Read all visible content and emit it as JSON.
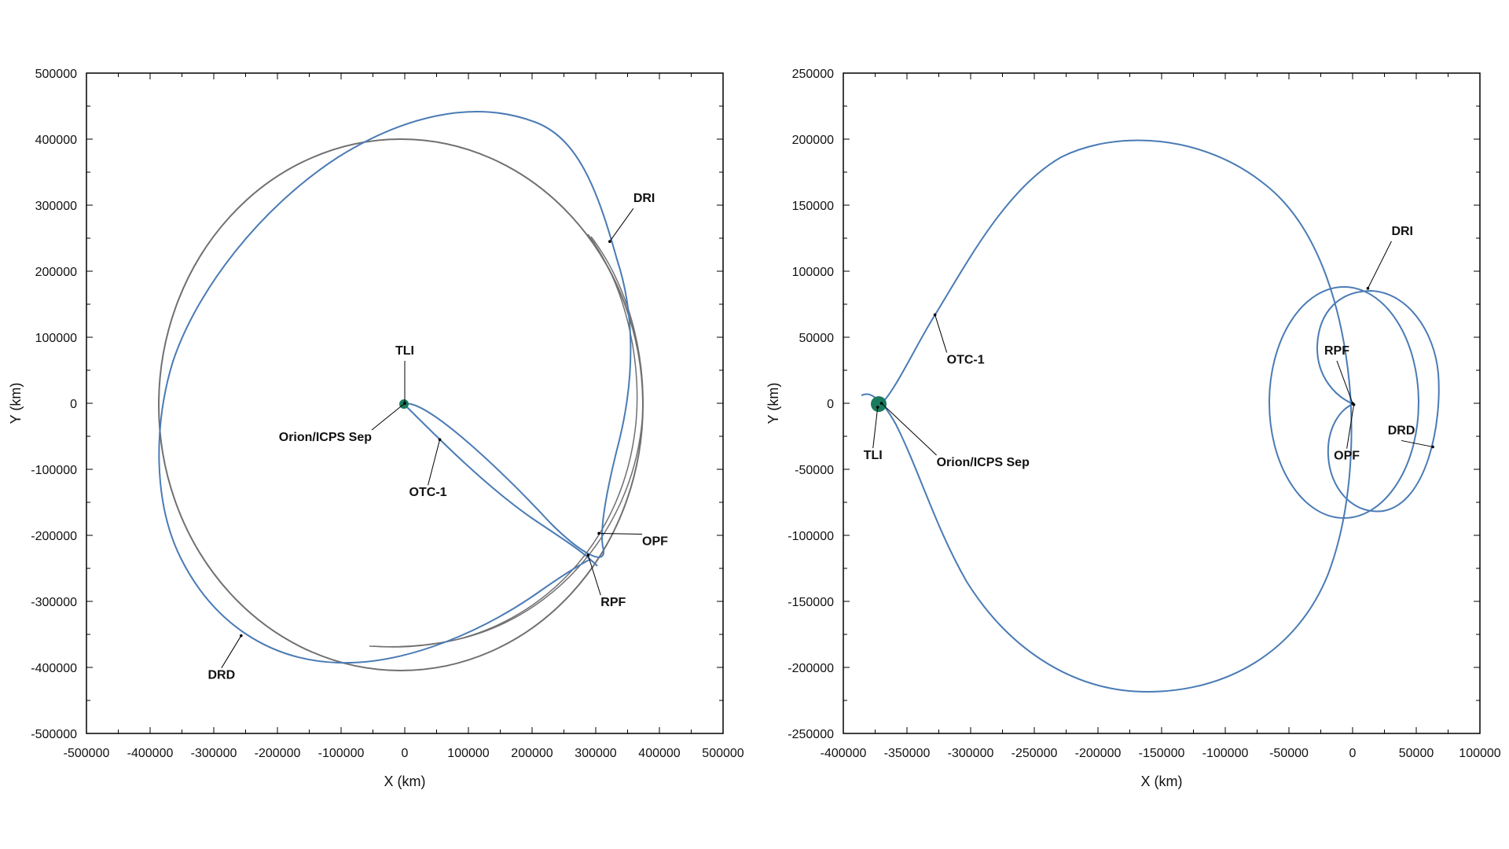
{
  "colors": {
    "trajectory": "#4a7bb5",
    "moon_orbit": "#707070",
    "earth": "#1a7a5e",
    "axis": "#000000"
  },
  "chart_data": [
    {
      "type": "line",
      "xlabel": "X (km)",
      "ylabel": "Y (km)",
      "xlim": [
        -500000,
        500000
      ],
      "ylim": [
        -500000,
        500000
      ],
      "x_ticks": [
        "-500000",
        "-400000",
        "-300000",
        "-200000",
        "-100000",
        "0",
        "100000",
        "200000",
        "300000",
        "400000",
        "500000"
      ],
      "y_ticks": [
        "500000",
        "400000",
        "300000",
        "200000",
        "100000",
        "0",
        "-100000",
        "-200000",
        "-300000",
        "-400000",
        "-500000"
      ],
      "grid": false,
      "annotations": [
        {
          "label": "TLI",
          "x": 0,
          "y": 0
        },
        {
          "label": "Orion/ICPS Sep",
          "x": 0,
          "y": 0
        },
        {
          "label": "OTC-1",
          "x": 55000,
          "y": -55000
        },
        {
          "label": "DRI",
          "x": 322000,
          "y": 245000
        },
        {
          "label": "OPF",
          "x": 305000,
          "y": -197000
        },
        {
          "label": "RPF",
          "x": 288000,
          "y": -230000
        },
        {
          "label": "DRD",
          "x": -257000,
          "y": -352000
        }
      ]
    },
    {
      "type": "line",
      "xlabel": "X (km)",
      "ylabel": "Y (km)",
      "xlim": [
        -400000,
        100000
      ],
      "ylim": [
        -250000,
        250000
      ],
      "x_ticks": [
        "-400000",
        "-350000",
        "-300000",
        "-250000",
        "-200000",
        "-150000",
        "-100000",
        "-50000",
        "0",
        "50000",
        "100000"
      ],
      "y_ticks": [
        "250000",
        "200000",
        "150000",
        "100000",
        "50000",
        "0",
        "-50000",
        "-100000",
        "-150000",
        "-200000",
        "-250000"
      ],
      "grid": false,
      "annotations": [
        {
          "label": "OTC-1",
          "x": -328000,
          "y": 67000
        },
        {
          "label": "TLI",
          "x": -373000,
          "y": -3000
        },
        {
          "label": "Orion/ICPS Sep",
          "x": -370000,
          "y": 0
        },
        {
          "label": "RPF",
          "x": 0,
          "y": 0
        },
        {
          "label": "DRI",
          "x": 12000,
          "y": 87000
        },
        {
          "label": "OPF",
          "x": 1000,
          "y": -1000
        },
        {
          "label": "DRD",
          "x": 63000,
          "y": -33000
        }
      ]
    }
  ]
}
